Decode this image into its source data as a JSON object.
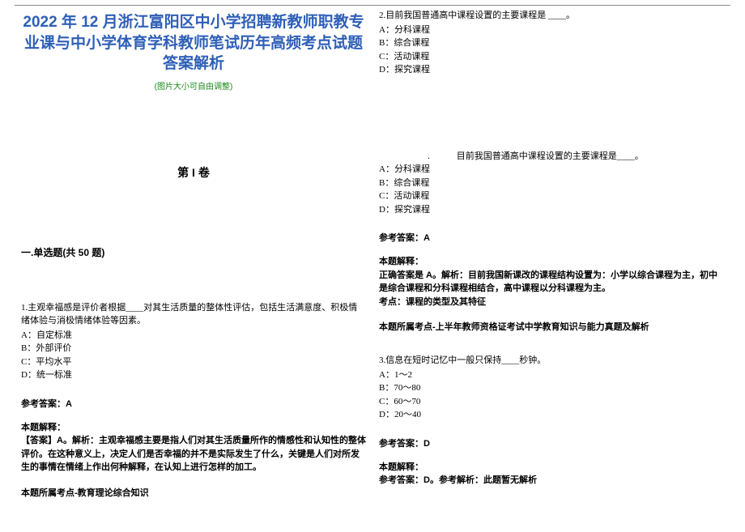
{
  "header": {
    "title": "2022 年 12 月浙江富阳区中小学招聘新教师职教专业课与中小学体育学科教师笔试历年高频考点试题答案解析",
    "hint": "(图片大小可自由调整)",
    "volume": "第 I 卷",
    "section": "一.单选题(共 50 题)"
  },
  "q1": {
    "stem": "1.主观幸福感是评价者根据____对其生活质量的整体性评估，包括生活满意度、积极情绪体验与消极情绪体验等因素。",
    "A": "A：自定标准",
    "B": "B：外部评价",
    "C": "C：平均水平",
    "D": "D：统一标准",
    "ans": "参考答案：A",
    "exp_label": "本题解释：",
    "exp": "【答案】A。解析：主观幸福感主要是指人们对其生活质量所作的情感性和认知性的整体评价。在这种意义上，决定人们是否幸福的并不是实际发生了什么，关键是人们对所发生的事情在情绪上作出何种解释，在认知上进行怎样的加工。",
    "topic": "本题所属考点-教育理论综合知识"
  },
  "q2": {
    "stem": "2.目前我国普通高中课程设置的主要课程是 ____。",
    "A": "A：分科课程",
    "B": "B：综合课程",
    "C": "C：活动课程",
    "D": "D：探究课程",
    "sub_stem": ".　　　目前我国普通高中课程设置的主要课程是____。",
    "sA": "A：分科课程",
    "sB": "B：综合课程",
    "sC": "C：活动课程",
    "sD": "D：探究课程",
    "ans": "参考答案：A",
    "exp_label": "本题解释：",
    "exp1": "正确答案是 A。解析：目前我国新课改的课程结构设置为：小学以综合课程为主，初中是综合课程和分科课程相结合，高中课程以分科课程为主。",
    "exp2": "考点：课程的类型及其特征",
    "topic": "本题所属考点-上半年教师资格证考试中学教育知识与能力真题及解析"
  },
  "q3": {
    "stem": "3.信息在短时记忆中一般只保持____秒钟。",
    "A": "A：1～2",
    "B": "B：70～80",
    "C": "C：60～70",
    "D": "D：20～40",
    "ans": "参考答案：D",
    "exp_label": "本题解释：",
    "exp": "参考答案：D。参考解析：此题暂无解析"
  }
}
